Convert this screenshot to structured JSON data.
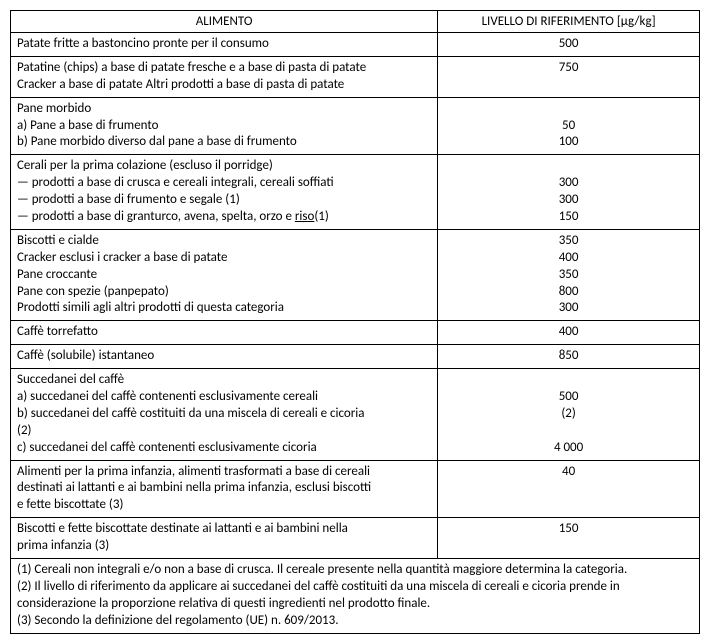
{
  "header": {
    "col1": "ALIMENTO",
    "col2": "LIVELLO DI RIFERIMENTO [μg/kg]"
  },
  "rows": [
    {
      "food": [
        "Patate fritte a bastoncino pronte per il consumo"
      ],
      "val": [
        "500"
      ]
    },
    {
      "food": [
        "Patatine (chips) a base di patate fresche e a base di pasta di patate",
        "Cracker a base di patate Altri prodotti a base di pasta di patate"
      ],
      "val": [
        "750",
        ""
      ]
    },
    {
      "food": [
        "Pane morbido",
        "a) Pane a base di frumento",
        "b) Pane morbido diverso dal pane a base di frumento"
      ],
      "val": [
        "",
        "50",
        "100"
      ]
    },
    {
      "food": [
        "Cerali per la prima colazione (escluso il porridge)",
        "— prodotti a base di crusca e cereali integrali, cereali soffiati",
        "— prodotti a base di frumento e segale (1)"
      ],
      "val": [
        "",
        "300",
        "300"
      ],
      "lastline": {
        "pre": "— prodotti a base di granturco, avena, spelta, orzo e ",
        "u": "riso",
        "post": "(1)",
        "val": "150"
      }
    },
    {
      "food": [
        "Biscotti e cialde",
        "Cracker esclusi i cracker a base di patate",
        "Pane croccante",
        "Pane con spezie (panpepato)",
        "Prodotti simili agli altri prodotti di questa categoria"
      ],
      "val": [
        "350",
        "400",
        "350",
        "800",
        "300"
      ]
    },
    {
      "food": [
        "Caffè torrefatto"
      ],
      "val": [
        "400"
      ]
    },
    {
      "food": [
        "Caffè (solubile) istantaneo"
      ],
      "val": [
        "850"
      ]
    },
    {
      "food": [
        "Succedanei del caffè",
        "a) succedanei del caffè contenenti esclusivamente cereali",
        "b) succedanei del caffè costituiti da una miscela di cereali e cicoria",
        "(2)",
        "c) succedanei del caffè contenenti esclusivamente cicoria"
      ],
      "val": [
        "",
        "500",
        "(2)",
        "",
        "4 000"
      ]
    },
    {
      "food": [
        "Alimenti per la prima infanzia, alimenti trasformati a base di cereali",
        "destinati ai lattanti e ai bambini nella prima infanzia, esclusi biscotti",
        "e fette biscottate (3)"
      ],
      "val": [
        "40",
        "",
        ""
      ]
    },
    {
      "food": [
        "Biscotti e fette biscottate destinate ai lattanti e ai bambini nella",
        "prima infanzia (3)"
      ],
      "val": [
        "150",
        ""
      ]
    }
  ],
  "notes": [
    "(1) Cereali non integrali e/o non a base di crusca. Il cereale presente nella quantità maggiore determina la categoria.",
    "(2) Il livello di riferimento da applicare ai succedanei del caffè costituiti da una miscela di cereali e cicoria prende in",
    "considerazione la proporzione relativa di questi ingredienti nel prodotto finale.",
    "(3) Secondo la definizione del regolamento (UE) n. 609/2013."
  ]
}
